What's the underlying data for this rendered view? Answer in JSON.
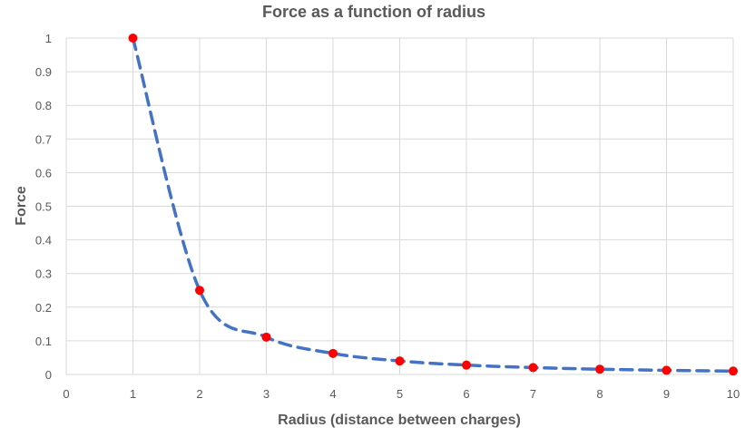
{
  "chart_data": {
    "type": "scatter",
    "title": "Force as a function of radius",
    "xlabel": "Radius (distance between charges)",
    "ylabel": "Force",
    "xlim": [
      0,
      10
    ],
    "ylim": [
      0,
      1
    ],
    "x_ticks": [
      "0",
      "1",
      "2",
      "3",
      "4",
      "5",
      "6",
      "7",
      "8",
      "9",
      "10"
    ],
    "y_ticks": [
      "0",
      "0.1",
      "0.2",
      "0.3",
      "0.4",
      "0.5",
      "0.6",
      "0.7",
      "0.8",
      "0.9",
      "1"
    ],
    "grid": true,
    "series": [
      {
        "x": [
          1,
          2,
          3,
          4,
          5,
          6,
          7,
          8,
          9,
          10
        ],
        "y": [
          1,
          0.25,
          0.111,
          0.0625,
          0.04,
          0.0278,
          0.0204,
          0.0156,
          0.0123,
          0.01
        ],
        "marker_color": "#ff0000",
        "trendline_color": "#4472c4"
      }
    ]
  }
}
